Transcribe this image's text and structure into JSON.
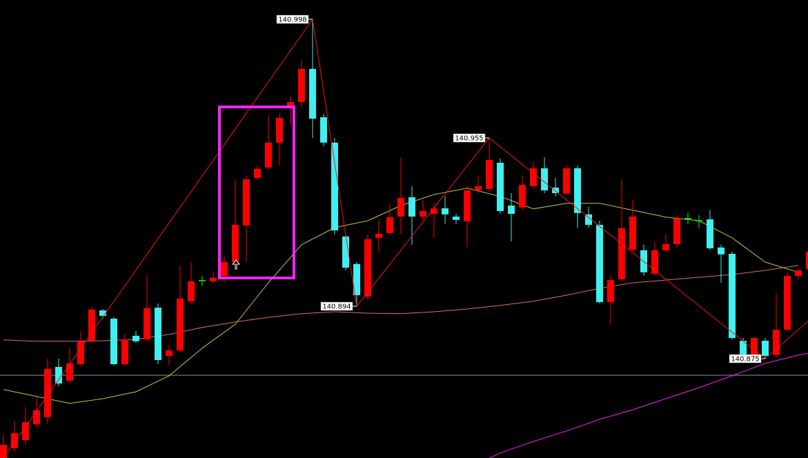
{
  "chart_data": {
    "type": "candlestick",
    "ylim": [
      140.839,
      141.005
    ],
    "up_color": "#ff0000",
    "down_color": "#3ff0f0",
    "flat_color": "#00ff00",
    "candles": {
      "open": [
        140.839,
        140.8425,
        140.8455,
        140.8513,
        140.8538,
        140.872,
        140.867,
        140.873,
        140.8815,
        140.8925,
        140.8895,
        140.873,
        140.8833,
        140.882,
        140.8935,
        140.876,
        140.878,
        140.8958,
        140.9033,
        140.903,
        140.905,
        140.91,
        140.9233,
        140.9405,
        140.9443,
        140.9533,
        140.9658,
        140.968,
        140.98,
        140.9625,
        140.9533,
        140.9193,
        140.9093,
        140.8975,
        140.9188,
        140.9205,
        140.9265,
        140.9335,
        140.9265,
        140.9275,
        140.9295,
        140.9265,
        140.9248,
        140.936,
        140.9365,
        140.946,
        140.9305,
        140.9298,
        140.9375,
        140.944,
        140.937,
        140.9348,
        140.944,
        140.9273,
        140.9235,
        140.8955,
        140.9038,
        140.9145,
        140.9143,
        140.9058,
        140.9143,
        140.9165,
        140.9258,
        140.925,
        140.9255,
        140.9153,
        140.913,
        140.8815,
        140.8763,
        140.8815,
        140.8763,
        140.8855,
        140.905,
        140.9075
      ],
      "high": [
        140.8475,
        140.8525,
        140.8575,
        140.8613,
        140.875,
        140.875,
        140.8788,
        140.885,
        140.8938,
        140.893,
        140.89,
        140.8838,
        140.885,
        140.905,
        140.895,
        140.88,
        140.9088,
        140.91,
        140.905,
        140.9063,
        140.9125,
        140.9395,
        140.9413,
        140.945,
        140.963,
        140.9638,
        140.97,
        140.983,
        140.998,
        140.9638,
        140.955,
        140.92,
        140.91,
        140.92,
        140.9255,
        140.9313,
        140.948,
        140.9375,
        140.9325,
        140.9313,
        140.9338,
        140.9275,
        140.9375,
        140.9413,
        140.955,
        140.9475,
        140.935,
        140.9413,
        140.9463,
        140.948,
        140.9405,
        140.945,
        140.945,
        140.93,
        140.925,
        140.905,
        140.94,
        140.9325,
        140.9163,
        140.9175,
        140.92,
        140.927,
        140.928,
        140.927,
        140.9288,
        140.9163,
        140.9138,
        140.8825,
        140.883,
        140.8825,
        140.8988,
        140.9063,
        140.908,
        140.915
      ],
      "low": [
        140.839,
        140.8413,
        140.8438,
        140.85,
        140.8513,
        140.865,
        140.8663,
        140.8725,
        140.881,
        140.8895,
        140.8725,
        140.8725,
        140.8808,
        140.8815,
        140.873,
        140.8725,
        140.8775,
        140.895,
        140.9015,
        140.9025,
        140.9025,
        140.9088,
        140.91,
        140.94,
        140.9438,
        140.945,
        140.96,
        140.9663,
        140.955,
        140.952,
        140.92,
        140.907,
        140.894,
        140.8963,
        140.9138,
        140.92,
        140.92,
        140.9163,
        140.925,
        140.9188,
        140.9238,
        140.9238,
        140.9155,
        140.935,
        140.9355,
        140.9275,
        140.9175,
        140.9288,
        140.9363,
        140.935,
        140.9338,
        140.9343,
        140.9225,
        140.9225,
        140.895,
        140.8875,
        140.903,
        140.9138,
        140.905,
        140.905,
        140.9138,
        140.915,
        140.9238,
        140.9225,
        140.9145,
        140.9025,
        140.882,
        140.8755,
        140.8755,
        140.875,
        140.8755,
        140.885,
        140.9038,
        140.907
      ],
      "close": [
        140.8438,
        140.848,
        140.852,
        140.8563,
        140.8713,
        140.866,
        140.8733,
        140.8813,
        140.8928,
        140.8905,
        140.873,
        140.882,
        140.8813,
        140.8933,
        140.8745,
        140.878,
        140.8968,
        140.903,
        140.9033,
        140.9043,
        140.91,
        140.9235,
        140.94,
        140.9438,
        140.9533,
        140.9623,
        140.968,
        140.98,
        140.962,
        140.9533,
        140.9215,
        140.908,
        140.898,
        140.9183,
        140.9203,
        140.9263,
        140.9333,
        140.9265,
        140.9285,
        140.9295,
        140.9273,
        140.9253,
        140.936,
        140.9375,
        140.947,
        140.9285,
        140.9275,
        140.938,
        140.944,
        140.936,
        140.935,
        140.944,
        140.9278,
        140.9235,
        140.8955,
        140.9035,
        140.9223,
        140.9265,
        140.9063,
        140.9143,
        140.9165,
        140.9258,
        140.9258,
        140.925,
        140.915,
        140.9128,
        140.8825,
        140.8763,
        140.8825,
        140.876,
        140.8855,
        140.905,
        140.907,
        140.9138
      ]
    },
    "lines": [
      {
        "color": "#c8c832",
        "x": [
          0,
          3,
          6,
          9,
          12,
          15,
          18,
          21,
          24,
          27,
          30,
          33,
          36,
          39,
          42,
          45,
          48,
          51,
          54,
          57,
          60,
          63,
          66,
          69,
          72
        ],
        "values": [
          140.8638,
          140.8613,
          140.8588,
          140.8605,
          140.863,
          140.8688,
          140.8788,
          140.8875,
          140.9025,
          140.9163,
          140.9225,
          140.925,
          140.9305,
          140.9345,
          140.9368,
          140.9338,
          140.9293,
          140.9313,
          140.9313,
          140.9288,
          140.9263,
          140.925,
          140.9188,
          140.91,
          140.9063
        ]
      },
      {
        "color": "#e07060",
        "x": [
          0,
          3,
          6,
          9,
          12,
          15,
          18,
          21,
          24,
          27,
          30,
          33,
          36,
          39,
          42,
          45,
          48,
          51,
          54,
          57,
          60,
          63,
          66,
          69,
          72
        ],
        "values": [
          140.8818,
          140.8813,
          140.8813,
          140.8815,
          140.882,
          140.8838,
          140.8863,
          140.8883,
          140.89,
          140.8913,
          140.892,
          140.8915,
          140.8913,
          140.892,
          140.893,
          140.8943,
          140.8958,
          140.898,
          140.9005,
          140.9025,
          140.9035,
          140.9045,
          140.9055,
          140.907,
          140.9088
        ]
      },
      {
        "color": "#ff20ff",
        "x": [
          44,
          45,
          48,
          51,
          54,
          57,
          60,
          63,
          66,
          69,
          72,
          73
        ],
        "values": [
          140.839,
          140.8408,
          140.845,
          140.8488,
          140.853,
          140.8565,
          140.8605,
          140.8645,
          140.8688,
          140.8733,
          140.8763,
          140.877
        ]
      }
    ],
    "zigzag": {
      "color": "#ff1010",
      "x": [
        0,
        28,
        32,
        44,
        69,
        73
      ],
      "values": [
        140.839,
        140.998,
        140.894,
        140.955,
        140.875,
        140.889
      ]
    },
    "hline": {
      "value": 140.869,
      "color": "#8c9aa8"
    }
  }
}
